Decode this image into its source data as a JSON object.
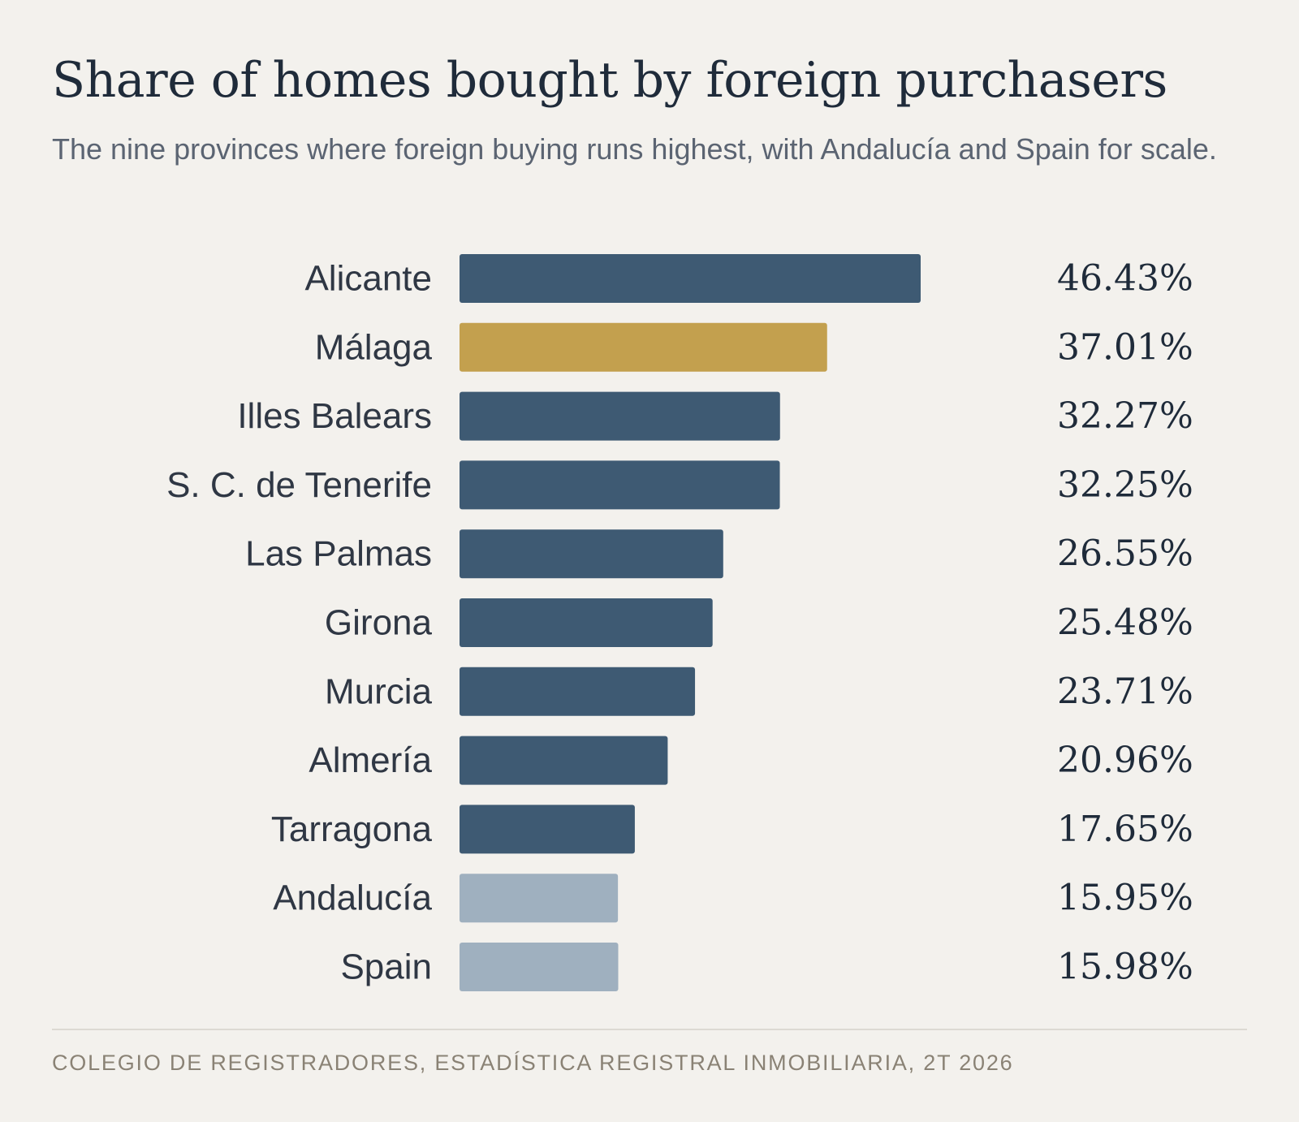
{
  "header": {
    "title": "Share of homes bought by foreign purchasers",
    "subtitle": "The nine provinces where foreign buying runs highest, with Andalucía and Spain for scale."
  },
  "footer": {
    "source": "COLEGIO DE REGISTRADORES, ESTADÍSTICA REGISTRAL INMOBILIARIA, 2T 2026"
  },
  "colors": {
    "background": "#f3f1ed",
    "province": "#3e5a73",
    "highlight": "#c3a04e",
    "reference": "#9fb0bf",
    "label_text": "#2f3744",
    "value_text": "#1f2b3a"
  },
  "chart_data": {
    "type": "bar",
    "orientation": "horizontal",
    "unit": "%",
    "categories": [
      "Alicante",
      "Málaga",
      "Illes Balears",
      "S. C. de Tenerife",
      "Las Palmas",
      "Girona",
      "Murcia",
      "Almería",
      "Tarragona",
      "Andalucía",
      "Spain"
    ],
    "values": [
      46.43,
      37.01,
      32.27,
      32.25,
      26.55,
      25.48,
      23.71,
      20.96,
      17.65,
      15.95,
      15.98
    ],
    "value_labels": [
      "46.43%",
      "37.01%",
      "32.27%",
      "32.25%",
      "26.55%",
      "25.48%",
      "23.71%",
      "20.96%",
      "17.65%",
      "15.95%",
      "15.98%"
    ],
    "bar_roles": [
      "province",
      "highlight",
      "province",
      "province",
      "province",
      "province",
      "province",
      "province",
      "province",
      "reference",
      "reference"
    ],
    "xlim": [
      0,
      46.43
    ],
    "grid": false,
    "legend": "none",
    "xlabel": "",
    "ylabel": ""
  }
}
